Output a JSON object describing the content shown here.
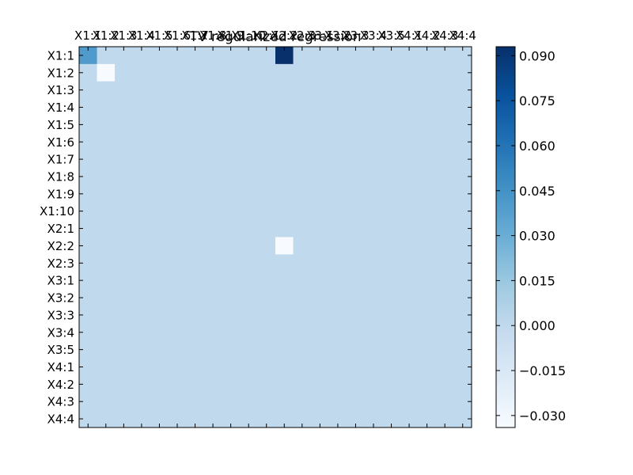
{
  "chart_data": {
    "type": "heatmap",
    "title": "TV regularized regression",
    "row_labels": [
      "X1:1",
      "X1:2",
      "X1:3",
      "X1:4",
      "X1:5",
      "X1:6",
      "X1:7",
      "X1:8",
      "X1:9",
      "X1:10",
      "X2:1",
      "X2:2",
      "X2:3",
      "X3:1",
      "X3:2",
      "X3:3",
      "X3:4",
      "X3:5",
      "X4:1",
      "X4:2",
      "X4:3",
      "X4:4"
    ],
    "col_labels": [
      "X1:1",
      "X1:2",
      "X1:3",
      "X1:4",
      "X1:5",
      "X1:6",
      "X1:7",
      "X1:8",
      "X1:9",
      "X1:10",
      "X2:1",
      "X2:2",
      "X2:3",
      "X3:1",
      "X3:2",
      "X3:3",
      "X3:4",
      "X3:5",
      "X4:1",
      "X4:2",
      "X4:3",
      "X4:4"
    ],
    "default_value": 0.0,
    "cells": [
      {
        "row": 0,
        "col": 0,
        "value": 0.04
      },
      {
        "row": 0,
        "col": 11,
        "value": 0.093
      },
      {
        "row": 1,
        "col": 1,
        "value": -0.034
      },
      {
        "row": 11,
        "col": 11,
        "value": -0.034
      }
    ],
    "value_range": [
      -0.034,
      0.093
    ],
    "colormap": "Blues",
    "colors": [
      "#f7fbff",
      "#deebf7",
      "#c6dbef",
      "#9ecae1",
      "#6baed6",
      "#4292c6",
      "#2171b5",
      "#08519c",
      "#08306b"
    ],
    "colorbar": {
      "ticks": [
        -0.03,
        -0.015,
        0.0,
        0.015,
        0.03,
        0.045,
        0.06,
        0.075,
        0.09
      ],
      "tick_labels": [
        "−0.030",
        "−0.015",
        "0.000",
        "0.015",
        "0.030",
        "0.045",
        "0.060",
        "0.075",
        "0.090"
      ]
    },
    "grid": false
  }
}
